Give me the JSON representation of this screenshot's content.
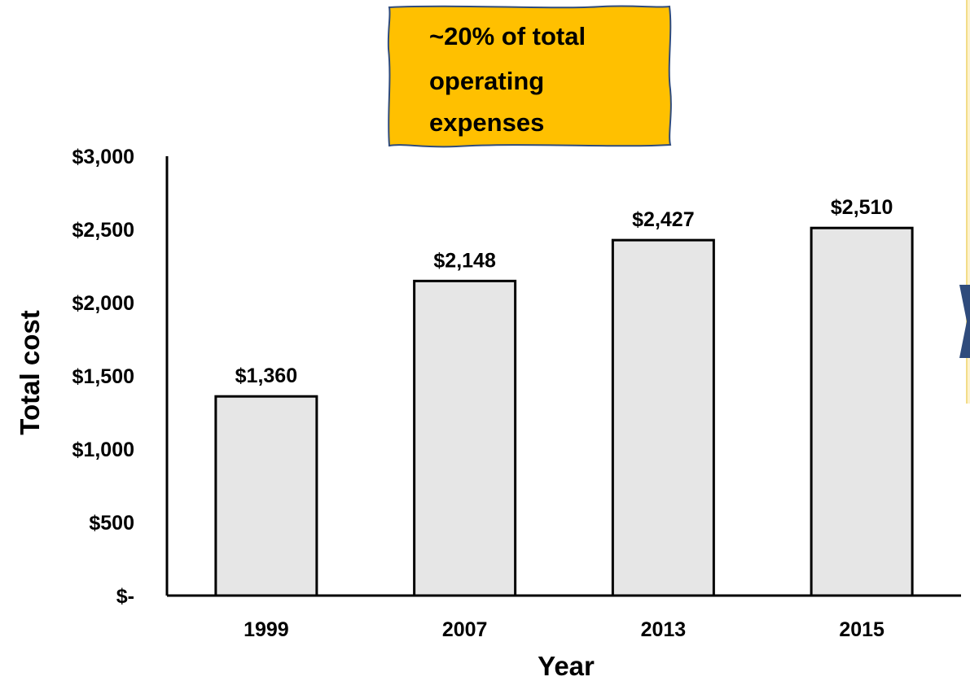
{
  "callout": {
    "text_lines": [
      "~20% of total",
      "operating",
      "expenses"
    ],
    "fill_color": "#ffc000",
    "border_color": "#2f4b7c"
  },
  "chart_data": {
    "type": "bar",
    "categories": [
      "1999",
      "2007",
      "2013",
      "2015"
    ],
    "values": [
      1360,
      2148,
      2427,
      2510
    ],
    "data_labels": [
      "$1,360",
      "$2,148",
      "$2,427",
      "$2,510"
    ],
    "xlabel": "Year",
    "ylabel": "Total cost",
    "ylim": [
      0,
      3000
    ],
    "y_ticks": [
      {
        "value": 0,
        "label": "$-"
      },
      {
        "value": 500,
        "label": "$500"
      },
      {
        "value": 1000,
        "label": "$1,000"
      },
      {
        "value": 1500,
        "label": "$1,500"
      },
      {
        "value": 2000,
        "label": "$2,000"
      },
      {
        "value": 2500,
        "label": "$2,500"
      },
      {
        "value": 3000,
        "label": "$3,000"
      }
    ],
    "grid": false,
    "bar_color": "#e6e6e6",
    "bar_outline_color": "#000000"
  },
  "colors": {
    "right_panel": "#fdf2cc",
    "right_chevron": "#2f4b7c"
  }
}
